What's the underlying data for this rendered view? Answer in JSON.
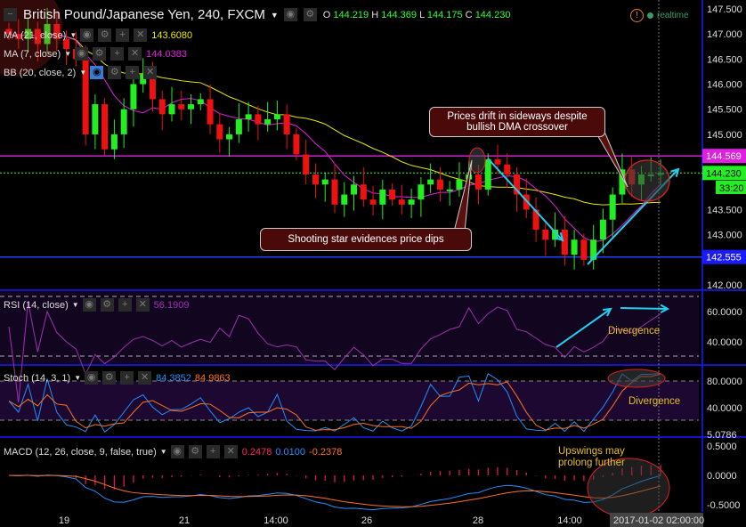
{
  "header": {
    "title": "British Pound/Japanese Yen, 240, FXCM",
    "o_label": "O",
    "o": "144.219",
    "h_label": "H",
    "h": "144.369",
    "l_label": "L",
    "l": "144.175",
    "c_label": "C",
    "c": "144.230",
    "status": "realtime"
  },
  "indicators": {
    "ma21": {
      "label": "MA (21, close)",
      "value": "143.6080",
      "color": "#e8e800"
    },
    "ma7": {
      "label": "MA (7, close)",
      "value": "144.0383",
      "color": "#e020e0"
    },
    "bb": {
      "label": "BB (20, close, 2)"
    },
    "rsi": {
      "label": "RSI (14, close)",
      "value": "56.1909",
      "color": "#a030b0"
    },
    "stoch": {
      "label": "Stoch (14, 3, 1)",
      "k": "84.3852",
      "d": "84.9863"
    },
    "macd": {
      "label": "MACD (12, 26, close, 9, false, true)",
      "hist": "0.2478",
      "macd": "0.0100",
      "signal": "-0.2378"
    }
  },
  "annotations": {
    "drift": "Prices drift in sideways despite bullish DMA crossover",
    "star": "Shooting star evidences price dips",
    "rsi_div": "Divergence",
    "stoch_div": "Divergence",
    "macd_note": "Upswings may prolong further"
  },
  "price_axis": {
    "ticks": [
      "147.500",
      "147.000",
      "146.500",
      "146.000",
      "145.500",
      "145.000",
      "143.500",
      "143.000",
      "142.000"
    ],
    "resistance": "144.569",
    "support": "142.555",
    "last": "144.230",
    "countdown": "33:20"
  },
  "rsi_axis": [
    "60.0000",
    "40.0000"
  ],
  "stoch_axis": [
    "80.0000",
    "40.0000",
    "5.0786"
  ],
  "macd_axis": [
    "0.5000",
    "0.0000",
    "-0.5000"
  ],
  "time_axis": [
    "19",
    "21",
    "14:00",
    "26",
    "28",
    "14:00",
    "2017-01-02 02:00:00"
  ],
  "colors": {
    "up": "#22ee22",
    "down": "#ee1111",
    "axis": "#1a1aff"
  },
  "chart_data": {
    "type": "candlestick",
    "closes": [
      147.0,
      146.9,
      147.1,
      146.8,
      147.2,
      146.9,
      146.7,
      146.5,
      145.0,
      145.6,
      144.7,
      145.0,
      145.5,
      146.0,
      146.2,
      145.7,
      145.4,
      145.6,
      145.5,
      145.6,
      145.7,
      145.2,
      144.9,
      145.0,
      145.3,
      145.4,
      145.2,
      145.3,
      145.4,
      145.0,
      144.6,
      144.2,
      144.0,
      144.1,
      143.6,
      143.8,
      144.0,
      143.7,
      143.6,
      143.9,
      143.7,
      143.6,
      143.7,
      144.0,
      144.1,
      143.9,
      143.9,
      144.1,
      144.2,
      143.9,
      144.5,
      144.4,
      144.2,
      143.8,
      143.5,
      143.1,
      142.9,
      143.1,
      142.6,
      142.9,
      142.5,
      142.9,
      143.3,
      143.8,
      144.3,
      144.0,
      144.2,
      144.2,
      144.23
    ],
    "ylim": [
      141.8,
      147.7
    ],
    "resistance": 144.569,
    "support": 142.555
  }
}
